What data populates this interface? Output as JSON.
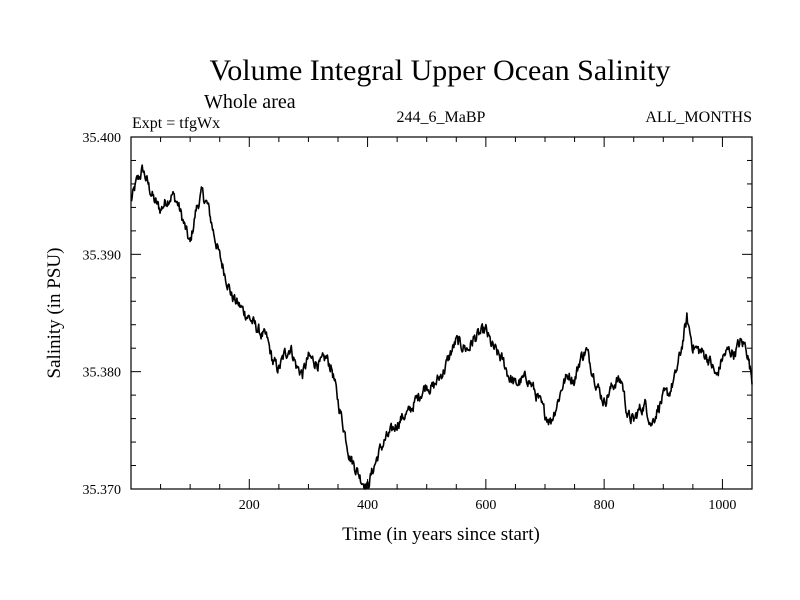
{
  "chart_data": {
    "type": "line",
    "title": "Volume Integral Upper Ocean Salinity",
    "subtitle": "Whole area",
    "experiment": "Expt = tfgWx",
    "run_label": "244_6_MaBP",
    "months_label": "ALL_MONTHS",
    "xlabel": "Time (in years since start)",
    "ylabel": "Salinity (in PSU)",
    "xlim": [
      0,
      1050
    ],
    "ylim": [
      35.37,
      35.4
    ],
    "x_ticks": [
      {
        "value": 200,
        "label": "200"
      },
      {
        "value": 400,
        "label": "400"
      },
      {
        "value": 600,
        "label": "600"
      },
      {
        "value": 800,
        "label": "800"
      },
      {
        "value": 1000,
        "label": "1000"
      }
    ],
    "y_ticks": [
      {
        "value": 35.37,
        "label": "35.370"
      },
      {
        "value": 35.38,
        "label": "35.380"
      },
      {
        "value": 35.39,
        "label": "35.390"
      },
      {
        "value": 35.4,
        "label": "35.400"
      }
    ],
    "series": [
      {
        "name": "salinity",
        "color": "#000000",
        "x": [
          0,
          10,
          20,
          30,
          40,
          50,
          60,
          70,
          80,
          90,
          100,
          110,
          120,
          130,
          140,
          150,
          160,
          170,
          180,
          190,
          200,
          210,
          220,
          230,
          240,
          250,
          260,
          270,
          280,
          290,
          300,
          310,
          320,
          330,
          340,
          350,
          360,
          370,
          380,
          390,
          400,
          410,
          420,
          430,
          440,
          450,
          460,
          470,
          480,
          490,
          500,
          510,
          520,
          530,
          540,
          550,
          560,
          570,
          580,
          590,
          600,
          610,
          620,
          630,
          640,
          650,
          660,
          670,
          680,
          690,
          700,
          710,
          720,
          730,
          740,
          750,
          760,
          770,
          780,
          790,
          800,
          810,
          820,
          830,
          840,
          850,
          860,
          870,
          880,
          890,
          900,
          910,
          920,
          930,
          940,
          950,
          960,
          970,
          980,
          990,
          1000,
          1010,
          1020,
          1030,
          1040,
          1050
        ],
        "y": [
          35.3945,
          35.3962,
          35.3972,
          35.3958,
          35.3945,
          35.3938,
          35.3946,
          35.3951,
          35.3942,
          35.3925,
          35.3908,
          35.3938,
          35.3952,
          35.3941,
          35.3918,
          35.3898,
          35.3882,
          35.3865,
          35.3858,
          35.3852,
          35.3846,
          35.3839,
          35.3832,
          35.3828,
          35.3808,
          35.3802,
          35.3815,
          35.3821,
          35.3804,
          35.3798,
          35.3812,
          35.3809,
          35.3806,
          35.3812,
          35.3802,
          35.3775,
          35.3752,
          35.3728,
          35.3718,
          35.3708,
          35.3702,
          35.3718,
          35.3732,
          35.3742,
          35.3748,
          35.3756,
          35.3762,
          35.3765,
          35.3774,
          35.3782,
          35.3789,
          35.3786,
          35.3794,
          35.3802,
          35.3815,
          35.3826,
          35.3822,
          35.3819,
          35.3828,
          35.3832,
          35.3835,
          35.3822,
          35.3815,
          35.3808,
          35.3795,
          35.3789,
          35.3792,
          35.3795,
          35.3786,
          35.3775,
          35.3764,
          35.3758,
          35.3772,
          35.3789,
          35.3798,
          35.3792,
          35.3812,
          35.3818,
          35.3802,
          35.3786,
          35.3774,
          35.3784,
          35.3792,
          35.3792,
          35.3762,
          35.3758,
          35.3768,
          35.3772,
          35.3755,
          35.3768,
          35.3778,
          35.3782,
          35.3795,
          35.3818,
          35.3845,
          35.3822,
          35.3818,
          35.3815,
          35.3808,
          35.3795,
          35.3812,
          35.3818,
          35.3816,
          35.3825,
          35.3822,
          35.3794
        ]
      }
    ]
  }
}
